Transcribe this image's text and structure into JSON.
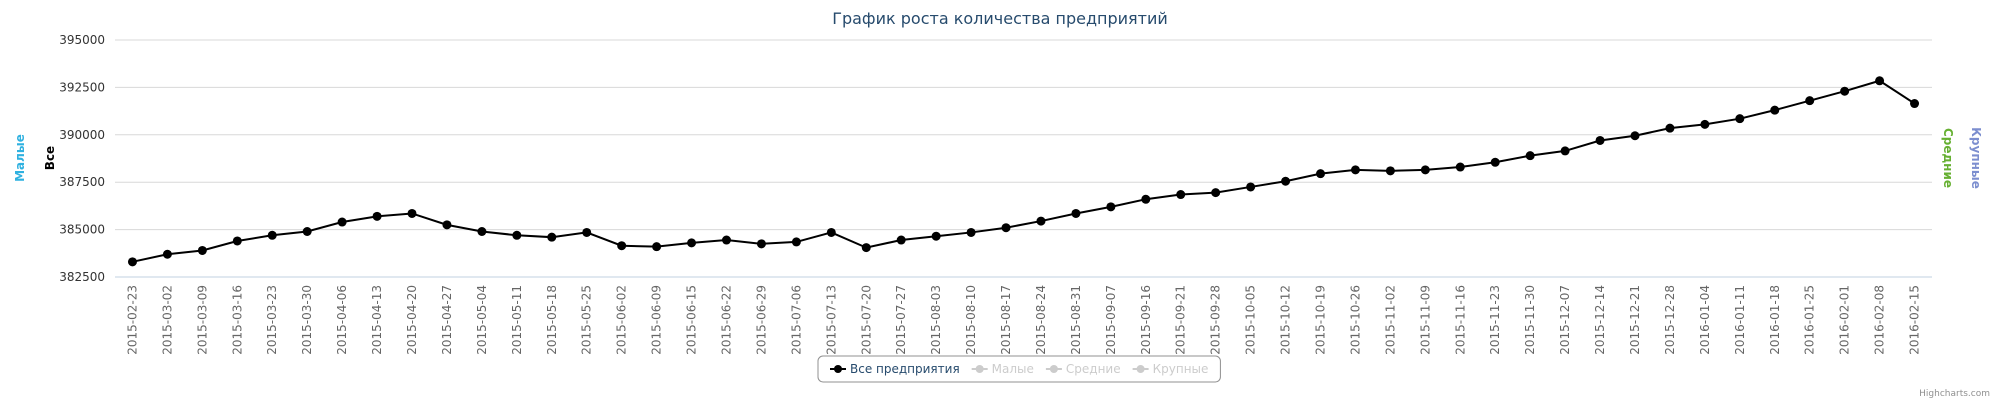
{
  "chart_data": {
    "type": "line",
    "title": "График роста количества предприятий",
    "credits": "Highcharts.com",
    "y_axis_titles_left": [
      {
        "text": "Малые",
        "color": "#2fb1e0"
      },
      {
        "text": "Все",
        "color": "#000000"
      }
    ],
    "y_axis_titles_right": [
      {
        "text": "Средние",
        "color": "#66b032"
      },
      {
        "text": "Крупные",
        "color": "#7c8ecf"
      }
    ],
    "categories": [
      "2015-02-23",
      "2015-03-02",
      "2015-03-09",
      "2015-03-16",
      "2015-03-23",
      "2015-03-30",
      "2015-04-06",
      "2015-04-13",
      "2015-04-20",
      "2015-04-27",
      "2015-05-04",
      "2015-05-11",
      "2015-05-18",
      "2015-05-25",
      "2015-06-02",
      "2015-06-09",
      "2015-06-15",
      "2015-06-22",
      "2015-06-29",
      "2015-07-06",
      "2015-07-13",
      "2015-07-20",
      "2015-07-27",
      "2015-08-03",
      "2015-08-10",
      "2015-08-17",
      "2015-08-24",
      "2015-08-31",
      "2015-09-07",
      "2015-09-16",
      "2015-09-21",
      "2015-09-28",
      "2015-10-05",
      "2015-10-12",
      "2015-10-19",
      "2015-10-26",
      "2015-11-02",
      "2015-11-09",
      "2015-11-16",
      "2015-11-23",
      "2015-11-30",
      "2015-12-07",
      "2015-12-14",
      "2015-12-21",
      "2015-12-28",
      "2016-01-04",
      "2016-01-11",
      "2016-01-18",
      "2016-01-25",
      "2016-02-01",
      "2016-02-08",
      "2016-02-15"
    ],
    "series": [
      {
        "name": "Все предприятия",
        "color": "#000000",
        "visible": true,
        "values": [
          383300,
          383700,
          383900,
          384400,
          384700,
          384900,
          385400,
          385700,
          385850,
          385250,
          384900,
          384700,
          384600,
          384850,
          384150,
          384100,
          384300,
          384450,
          384250,
          384350,
          384850,
          384050,
          384450,
          384650,
          384850,
          385100,
          385450,
          385850,
          386200,
          386600,
          386850,
          386950,
          387250,
          387550,
          387950,
          388150,
          388100,
          388150,
          388300,
          388550,
          388900,
          389150,
          389700,
          389950,
          390350,
          390550,
          390850,
          391300,
          391800,
          392300,
          392850,
          391650
        ]
      },
      {
        "name": "Малые",
        "color": "#cccccc",
        "visible": false
      },
      {
        "name": "Средние",
        "color": "#cccccc",
        "visible": false
      },
      {
        "name": "Крупные",
        "color": "#cccccc",
        "visible": false
      }
    ],
    "ylim": [
      382500,
      395000
    ],
    "yticks": [
      382500,
      385000,
      387500,
      390000,
      392500,
      395000
    ],
    "grid": true
  }
}
